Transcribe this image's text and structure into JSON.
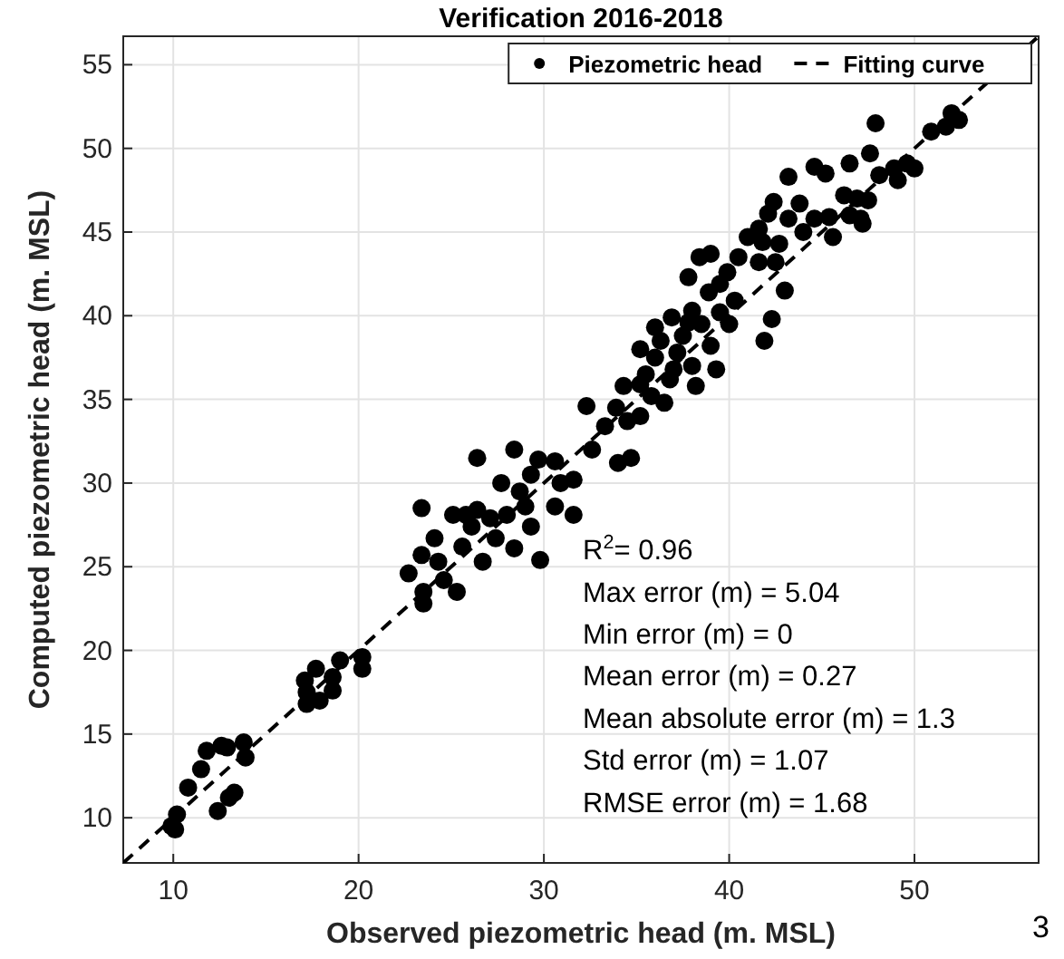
{
  "chart_data": {
    "type": "scatter",
    "title": "Verification 2016-2018",
    "xlabel": "Observed piezometric head (m. MSL)",
    "ylabel": "Computed piezometric head (m. MSL)",
    "xlim": [
      7.3,
      56.7
    ],
    "ylim": [
      7.3,
      56.7
    ],
    "xticks": [
      10,
      20,
      30,
      40,
      50
    ],
    "yticks": [
      10,
      15,
      20,
      25,
      30,
      35,
      40,
      45,
      50,
      55
    ],
    "grid": true,
    "legend": "top right",
    "series": [
      {
        "name": "Piezometric head",
        "color": "#000000",
        "marker": "circle",
        "x": [
          9.9,
          10.1,
          10.2,
          10.8,
          11.5,
          11.8,
          12.6,
          12.9,
          13.8,
          13.9,
          12.4,
          13.0,
          13.3,
          17.1,
          17.2,
          17.2,
          17.9,
          17.7,
          18.6,
          18.6,
          19.0,
          20.2,
          20.2,
          22.7,
          23.4,
          23.4,
          23.5,
          23.5,
          24.1,
          24.3,
          24.6,
          25.1,
          25.3,
          25.6,
          26.1,
          26.4,
          26.7,
          27.1,
          27.4,
          28.0,
          26.4,
          28.4,
          28.7,
          29.3,
          29.7,
          29.8,
          29.3,
          29.0,
          30.6,
          30.6,
          31.6,
          31.6,
          32.3,
          32.6,
          33.3,
          33.9,
          34.0,
          34.5,
          34.7,
          35.2,
          35.2,
          35.2,
          34.3,
          27.7,
          25.8,
          30.9,
          28.4,
          35.5,
          36.0,
          36.3,
          35.8,
          36.8,
          37.2,
          37.5,
          38.0,
          36.5,
          37.0,
          38.5,
          39.0,
          38.2,
          39.5,
          37.8,
          40.0,
          39.3,
          36.0,
          36.9,
          37.8,
          38.4,
          39.0,
          38.0,
          38.9,
          39.5,
          39.9,
          40.5,
          40.3,
          41.0,
          41.6,
          41.8,
          42.1,
          42.4,
          42.7,
          42.5,
          41.6,
          41.9,
          42.3,
          43.0,
          43.2,
          43.2,
          44.0,
          43.8,
          44.6,
          45.2,
          44.6,
          45.6,
          45.4,
          46.2,
          46.5,
          46.9,
          47.1,
          47.2,
          47.6,
          47.9,
          48.1,
          48.9,
          49.1,
          49.6,
          50.0,
          50.9,
          51.7,
          52.0,
          52.4,
          47.5,
          46.5
        ],
        "values": [
          9.5,
          9.3,
          10.2,
          11.8,
          12.9,
          14.0,
          14.3,
          14.2,
          14.5,
          13.6,
          10.4,
          11.2,
          11.5,
          18.2,
          17.5,
          16.8,
          17.0,
          18.9,
          18.4,
          17.6,
          19.4,
          19.6,
          18.9,
          24.6,
          28.5,
          25.7,
          23.5,
          22.8,
          26.7,
          25.3,
          24.2,
          28.1,
          23.5,
          26.2,
          27.4,
          28.4,
          25.3,
          27.9,
          26.7,
          28.1,
          31.5,
          32.0,
          29.5,
          30.5,
          31.4,
          25.4,
          27.4,
          28.6,
          31.3,
          28.6,
          28.1,
          30.2,
          34.6,
          32.0,
          33.4,
          34.5,
          31.2,
          33.7,
          31.5,
          38.0,
          35.9,
          34.0,
          35.8,
          30.0,
          28.1,
          30.0,
          26.1,
          36.5,
          37.5,
          38.5,
          35.2,
          36.2,
          37.8,
          38.8,
          37.0,
          34.8,
          36.8,
          39.5,
          38.2,
          35.8,
          40.2,
          39.6,
          39.5,
          36.8,
          39.3,
          39.9,
          42.3,
          43.5,
          43.7,
          40.3,
          41.4,
          41.9,
          42.6,
          43.5,
          40.9,
          44.7,
          45.2,
          44.4,
          46.1,
          46.8,
          44.3,
          43.2,
          43.2,
          38.5,
          39.8,
          41.5,
          48.3,
          45.8,
          45.0,
          46.7,
          48.9,
          48.5,
          45.8,
          44.7,
          45.9,
          47.2,
          49.1,
          47.0,
          45.8,
          45.5,
          49.7,
          51.5,
          48.4,
          48.8,
          48.1,
          49.1,
          48.8,
          51.0,
          51.3,
          52.1,
          51.7,
          46.9,
          46.0
        ]
      },
      {
        "name": "Fitting curve",
        "type": "line",
        "color": "#000000",
        "line_style": "dashed",
        "x": [
          7.3,
          56.7
        ],
        "values": [
          7.3,
          56.7
        ]
      }
    ],
    "annotations": [
      "R$^{2}$= 0.96",
      "Max error (m) = 5.04",
      "Min error (m) = 0",
      "Mean error (m) = 0.27",
      "Mean absolute error (m) = 1.3",
      "Std error (m) = 1.07",
      "RMSE error (m) = 1.68",
      "3"
    ]
  }
}
